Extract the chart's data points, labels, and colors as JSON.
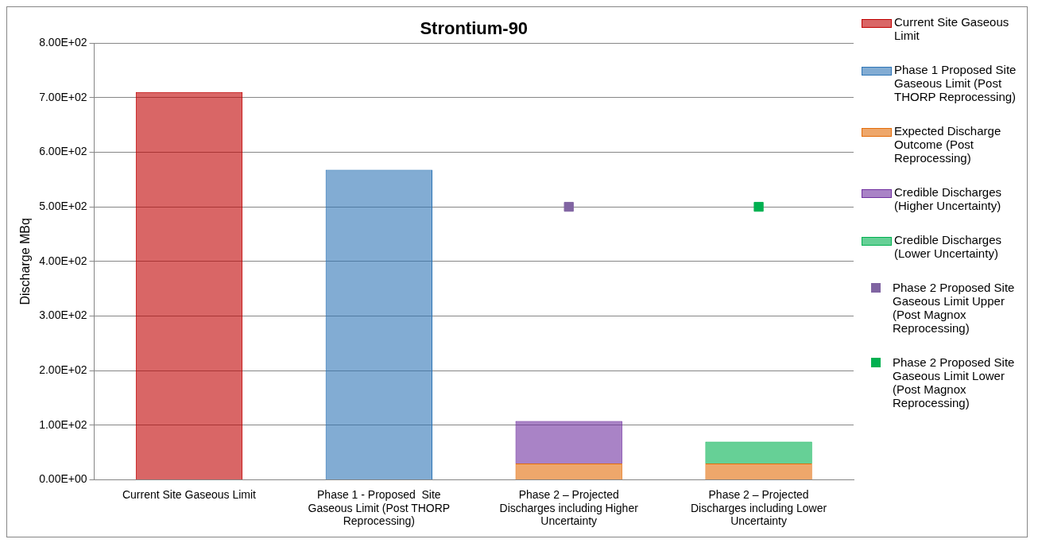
{
  "chart_data": {
    "type": "bar",
    "title": "Strontium-90",
    "ylabel": "Discharge MBq",
    "categories": [
      "Current Site Gaseous Limit",
      "Phase 1 - Proposed  Site Gaseous Limit (Post THORP Reprocessing)",
      "Phase 2 – Projected Discharges including Higher Uncertainty",
      "Phase 2 – Projected Discharges including Lower Uncertainty"
    ],
    "stacked": true,
    "series": [
      {
        "name": "Current Site Gaseous Limit",
        "color": "#c00000",
        "values": [
          710,
          null,
          null,
          null
        ]
      },
      {
        "name": "Phase 1 Proposed Site Gaseous Limit (Post THORP Reprocessing)",
        "color": "#2e75b6",
        "values": [
          null,
          568,
          null,
          null
        ]
      },
      {
        "name": "Expected Discharge Outcome (Post Reprocessing)",
        "color": "#e36c09",
        "values": [
          null,
          null,
          30,
          30
        ]
      },
      {
        "name": "Credible Discharges (Higher Uncertainty)",
        "color": "#7030a0",
        "values": [
          null,
          null,
          78,
          null
        ]
      },
      {
        "name": "Credible Discharges (Lower Uncertainty)",
        "color": "#00b050",
        "values": [
          null,
          null,
          null,
          40
        ]
      },
      {
        "name": "Phase 2 Proposed Site Gaseous Limit Upper (Post Magnox Reprocessing)",
        "type": "scatter",
        "color": "#8064a2",
        "values": [
          null,
          null,
          500,
          null
        ]
      },
      {
        "name": "Phase 2 Proposed Site Gaseous Limit Lower (Post Magnox Reprocessing)",
        "type": "scatter",
        "color": "#00b050",
        "values": [
          null,
          null,
          null,
          500
        ]
      }
    ],
    "ylim": [
      0,
      800
    ],
    "yticks": [
      {
        "value": 0,
        "label": "0.00E+00"
      },
      {
        "value": 100,
        "label": "1.00E+02"
      },
      {
        "value": 200,
        "label": "2.00E+02"
      },
      {
        "value": 300,
        "label": "3.00E+02"
      },
      {
        "value": 400,
        "label": "4.00E+02"
      },
      {
        "value": 500,
        "label": "5.00E+02"
      },
      {
        "value": 600,
        "label": "6.00E+02"
      },
      {
        "value": 700,
        "label": "7.00E+02"
      },
      {
        "value": 800,
        "label": "8.00E+02"
      }
    ],
    "grid": "y",
    "legend": "right",
    "marker": "square"
  }
}
